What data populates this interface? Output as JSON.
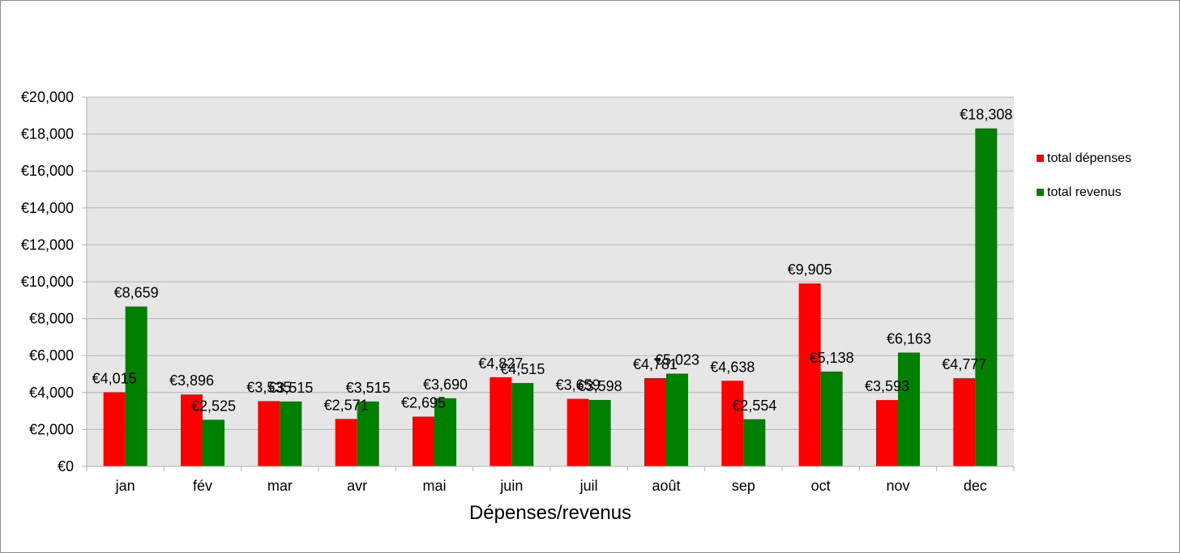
{
  "chart_data": {
    "type": "bar",
    "categories": [
      "jan",
      "fév",
      "mar",
      "avr",
      "mai",
      "juin",
      "juil",
      "août",
      "sep",
      "oct",
      "nov",
      "dec"
    ],
    "series": [
      {
        "name": "total dépenses",
        "color": "#ff0000",
        "values": [
          4015,
          3896,
          3535,
          2571,
          2695,
          4827,
          3659,
          4781,
          4638,
          9905,
          3593,
          4777
        ],
        "labels": [
          "€4,015",
          "€3,896",
          "€3,535",
          "€2,571",
          "€2,695",
          "€4,827",
          "€3,659",
          "€4,781",
          "€4,638",
          "€9,905",
          "€3,593",
          "€4,777"
        ]
      },
      {
        "name": "total revenus",
        "color": "#008000",
        "values": [
          8659,
          2525,
          3515,
          3515,
          3690,
          4515,
          3598,
          5023,
          2554,
          5138,
          6163,
          18308
        ],
        "labels": [
          "€8,659",
          "€2,525",
          "€3,515",
          "€3,515",
          "€3,690",
          "€4,515",
          "€3,598",
          "€5,023",
          "€2,554",
          "€5,138",
          "€6,163",
          "€18,308"
        ]
      }
    ],
    "yticks": [
      "€0",
      "€2,000",
      "€4,000",
      "€6,000",
      "€8,000",
      "€10,000",
      "€12,000",
      "€14,000",
      "€16,000",
      "€18,000",
      "€20,000"
    ],
    "ylim": [
      0,
      20000
    ],
    "xlabel": "Dépenses/revenus",
    "ylabel": "",
    "title": "",
    "grid": true,
    "legend_position": "right",
    "plot_background": "#e6e6e6"
  }
}
